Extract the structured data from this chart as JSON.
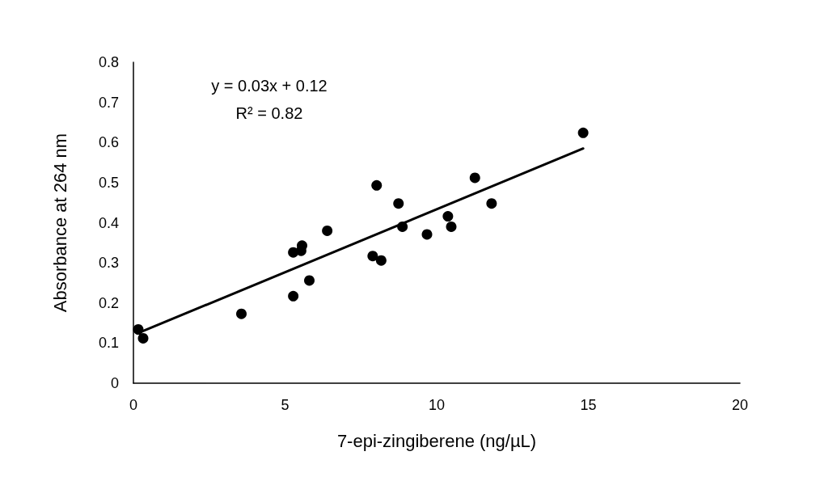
{
  "chart_data": {
    "type": "scatter",
    "xlabel": "7-epi-zingiberene (ng/µL)",
    "ylabel": "Absorbance at 264 nm",
    "annotations": [
      "y = 0.03x + 0.12",
      "R² = 0.82"
    ],
    "xlim": [
      0,
      20
    ],
    "xticks": [
      0,
      5,
      10,
      15,
      20
    ],
    "ylim": [
      0,
      0.8
    ],
    "yticks": [
      0,
      0.1,
      0.2,
      0.3,
      0.4,
      0.5,
      0.6,
      0.7,
      0.8
    ],
    "grid": false,
    "series": [
      {
        "color": "#000000",
        "marker": "circle",
        "x": [
          0.16,
          0.32,
          3.56,
          5.27,
          5.27,
          5.53,
          5.56,
          5.8,
          6.39,
          8.02,
          7.89,
          8.17,
          8.74,
          8.87,
          9.68,
          10.37,
          10.48,
          11.26,
          11.81,
          14.83
        ],
        "values": [
          0.134,
          0.112,
          0.173,
          0.326,
          0.217,
          0.33,
          0.343,
          0.256,
          0.38,
          0.493,
          0.317,
          0.306,
          0.448,
          0.39,
          0.371,
          0.416,
          0.39,
          0.512,
          0.448,
          0.624
        ]
      },
      {
        "type": "line",
        "color": "#000000",
        "marker": "none",
        "line_style": "solid",
        "x": [
          0.16,
          14.83
        ],
        "values": [
          0.125,
          0.585
        ]
      }
    ]
  }
}
